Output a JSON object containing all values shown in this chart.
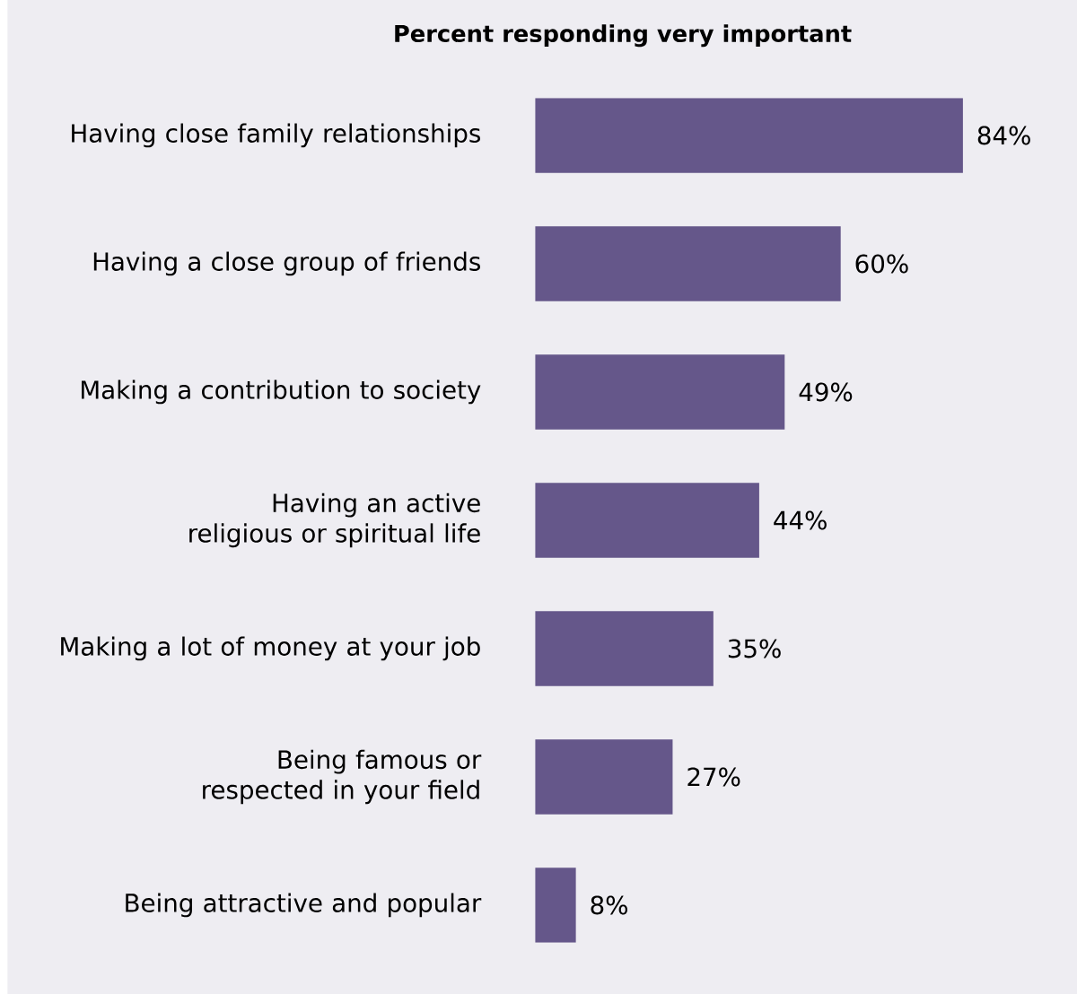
{
  "chart_data": {
    "type": "bar",
    "orientation": "horizontal",
    "title": "Percent responding very important",
    "categories": [
      "Having close family relationships",
      "Having a close group of friends",
      "Making a contribution to society",
      "Having an active religious or spiritual life",
      "Making a lot of money at your job",
      "Being famous or respected in your field",
      "Being attractive and popular"
    ],
    "values": [
      84,
      60,
      49,
      44,
      35,
      27,
      8
    ],
    "value_labels": [
      "84%",
      "60%",
      "49%",
      "44%",
      "35%",
      "27%",
      "8%"
    ],
    "color": "#65578a",
    "tick_labels": "y"
  }
}
